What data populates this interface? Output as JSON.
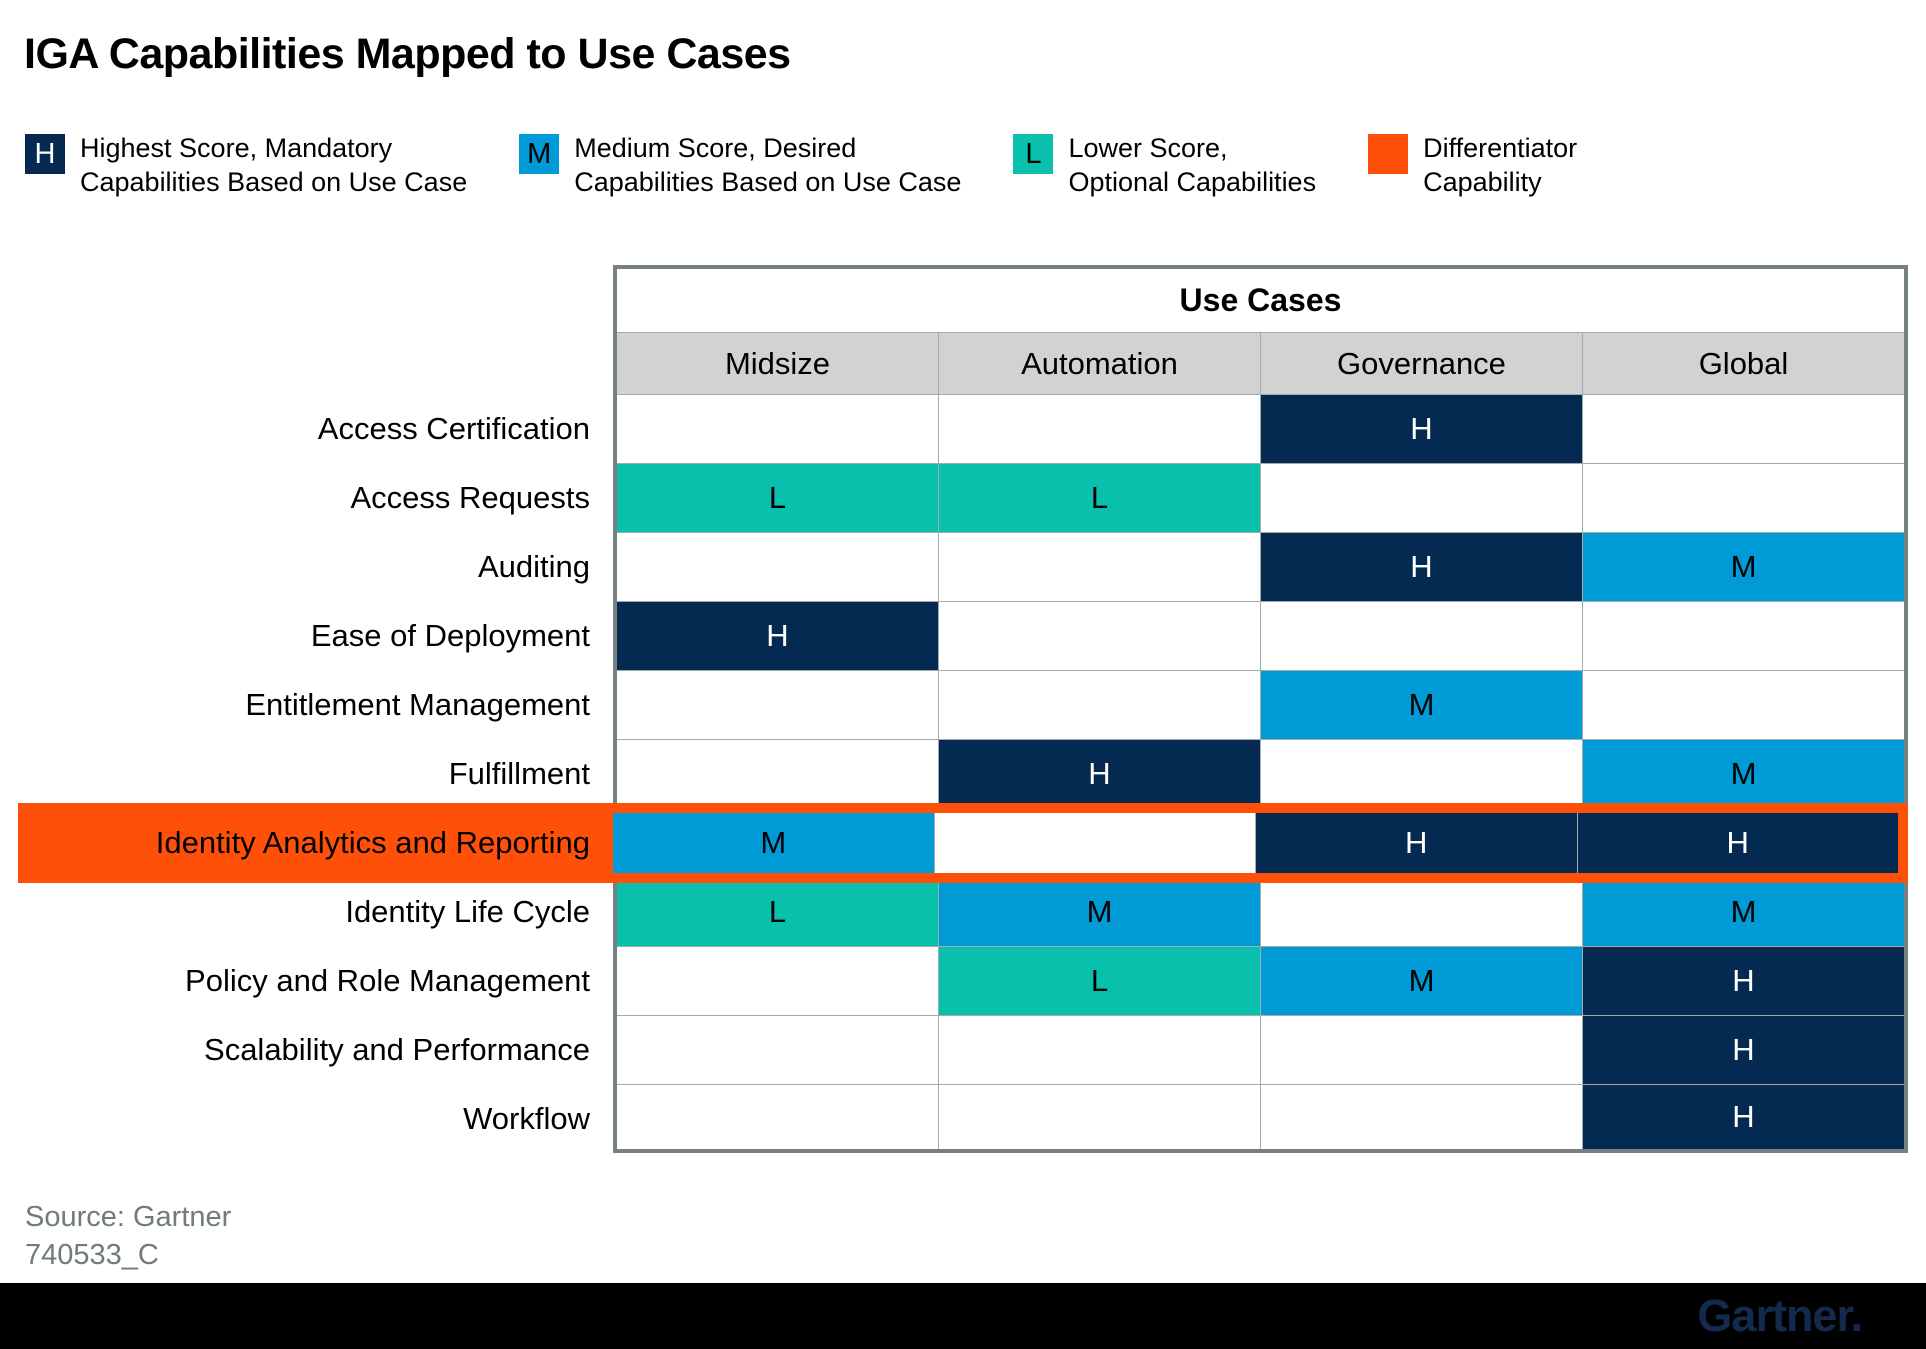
{
  "title": "IGA Capabilities Mapped to Use Cases",
  "colors": {
    "highest": "#042A52",
    "medium": "#009AD7",
    "lower": "#08C0AC",
    "differentiator": "#FF500A",
    "header_bg": "#D2D2D2",
    "grid_outer": "#75807F",
    "grid_inner": "#A4ABAB",
    "source_text": "#6F7C7A",
    "logo": "#14294E"
  },
  "legend": [
    {
      "symbol": "H",
      "color": "#042A52",
      "text_color": "#FFFFFF",
      "line1": "Highest Score, Mandatory",
      "line2": "Capabilities Based on Use Case"
    },
    {
      "symbol": "M",
      "color": "#009AD7",
      "text_color": "#000000",
      "line1": "Medium Score, Desired",
      "line2": "Capabilities Based on Use Case"
    },
    {
      "symbol": "L",
      "color": "#08C0AC",
      "text_color": "#000000",
      "line1": "Lower Score,",
      "line2": "Optional Capabilities"
    },
    {
      "symbol": "",
      "color": "#FF500A",
      "text_color": "#000000",
      "line1": "Differentiator",
      "line2": "Capability"
    }
  ],
  "table": {
    "group_header": "Use Cases",
    "columns": [
      "Midsize",
      "Automation",
      "Governance",
      "Global"
    ],
    "rows": [
      {
        "label": "Access Certification",
        "cells": [
          "",
          "",
          "H",
          ""
        ],
        "highlighted": false
      },
      {
        "label": "Access Requests",
        "cells": [
          "L",
          "L",
          "",
          ""
        ],
        "highlighted": false
      },
      {
        "label": "Auditing",
        "cells": [
          "",
          "",
          "H",
          "M"
        ],
        "highlighted": false
      },
      {
        "label": "Ease of Deployment",
        "cells": [
          "H",
          "",
          "",
          ""
        ],
        "highlighted": false
      },
      {
        "label": "Entitlement Management",
        "cells": [
          "",
          "",
          "M",
          ""
        ],
        "highlighted": false
      },
      {
        "label": "Fulfillment",
        "cells": [
          "",
          "H",
          "",
          "M"
        ],
        "highlighted": false
      },
      {
        "label": "Identity Analytics and Reporting",
        "cells": [
          "M",
          "",
          "H",
          "H"
        ],
        "highlighted": true
      },
      {
        "label": "Identity Life Cycle",
        "cells": [
          "L",
          "M",
          "",
          "M"
        ],
        "highlighted": false
      },
      {
        "label": "Policy and Role Management",
        "cells": [
          "",
          "L",
          "M",
          "H"
        ],
        "highlighted": false
      },
      {
        "label": "Scalability and Performance",
        "cells": [
          "",
          "",
          "",
          "H"
        ],
        "highlighted": false
      },
      {
        "label": "Workflow",
        "cells": [
          "",
          "",
          "",
          "H"
        ],
        "highlighted": false
      }
    ]
  },
  "chart_data": {
    "type": "heatmap",
    "title": "IGA Capabilities Mapped to Use Cases",
    "columns_group_label": "Use Cases",
    "columns": [
      "Midsize",
      "Automation",
      "Governance",
      "Global"
    ],
    "rows": [
      "Access Certification",
      "Access Requests",
      "Auditing",
      "Ease of Deployment",
      "Entitlement Management",
      "Fulfillment",
      "Identity Analytics and Reporting",
      "Identity Life Cycle",
      "Policy and Role Management",
      "Scalability and Performance",
      "Workflow"
    ],
    "values": [
      [
        "",
        "",
        "H",
        ""
      ],
      [
        "L",
        "L",
        "",
        ""
      ],
      [
        "",
        "",
        "H",
        "M"
      ],
      [
        "H",
        "",
        "",
        ""
      ],
      [
        "",
        "",
        "M",
        ""
      ],
      [
        "",
        "H",
        "",
        "M"
      ],
      [
        "M",
        "",
        "H",
        "H"
      ],
      [
        "L",
        "M",
        "",
        "M"
      ],
      [
        "",
        "L",
        "M",
        "H"
      ],
      [
        "",
        "",
        "",
        "H"
      ],
      [
        "",
        "",
        "",
        "H"
      ]
    ],
    "value_meanings": {
      "H": "Highest Score, Mandatory Capabilities Based on Use Case",
      "M": "Medium Score, Desired Capabilities Based on Use Case",
      "L": "Lower Score, Optional Capabilities"
    },
    "highlighted_row": "Identity Analytics and Reporting",
    "highlight_meaning": "Differentiator Capability",
    "legend_position": "top"
  },
  "source": {
    "line1": "Source: Gartner",
    "line2": "740533_C"
  },
  "footer": {
    "logo_text": "Gartner."
  }
}
